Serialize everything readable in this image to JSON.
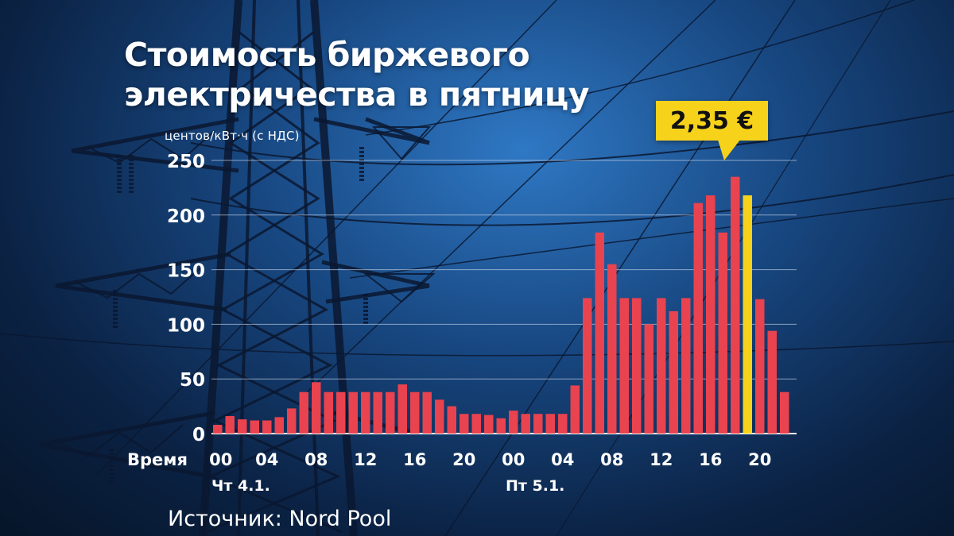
{
  "header": {
    "title_line1": "Стоимость биржевого",
    "title_line2": "электричества в пятницу",
    "unit_label": "центов/кВт·ч (с НДС)"
  },
  "callout": {
    "text": "2,35 €"
  },
  "footer": {
    "source": "Источник: Nord Pool"
  },
  "colors": {
    "bar": "#e8434f",
    "highlight": "#f7d21b",
    "text": "#ffffff",
    "grid": "#c9d6ea"
  },
  "chart_data": {
    "type": "bar",
    "title": "Стоимость биржевого электричества в пятницу",
    "ylabel": "центов/кВт·ч (с НДС)",
    "xlabel": "Время",
    "ylim": [
      0,
      250
    ],
    "yticks": [
      0,
      50,
      100,
      150,
      200,
      250
    ],
    "grid": true,
    "x_tick_labels": [
      "00",
      "04",
      "08",
      "12",
      "16",
      "20",
      "00",
      "04",
      "08",
      "12",
      "16",
      "20"
    ],
    "x_tick_hours": [
      0,
      4,
      8,
      12,
      16,
      20,
      24,
      28,
      32,
      36,
      40,
      44
    ],
    "days": [
      {
        "label": "Чт 4.1.",
        "start_hour": 0
      },
      {
        "label": "Пт 5.1.",
        "start_hour": 24
      }
    ],
    "highlight_hour": 43,
    "highlight_label": "2,35 €",
    "values": [
      8,
      16,
      13,
      12,
      12,
      15,
      23,
      38,
      47,
      38,
      38,
      38,
      38,
      38,
      38,
      45,
      38,
      38,
      31,
      25,
      18,
      18,
      17,
      14,
      21,
      18,
      18,
      18,
      18,
      44,
      124,
      184,
      155,
      124,
      124,
      100,
      124,
      112,
      124,
      211,
      218,
      184,
      235,
      218,
      123,
      94,
      38
    ]
  }
}
